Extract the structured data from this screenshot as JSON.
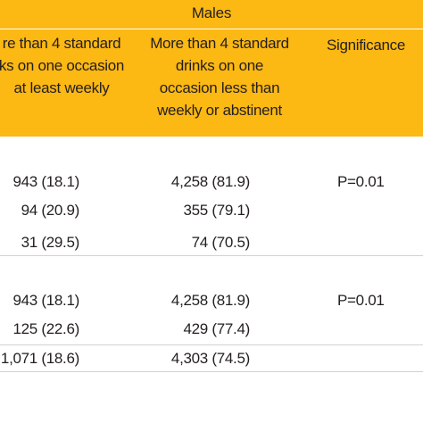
{
  "table": {
    "group_title": "Males",
    "columns": [
      [
        "re than 4 standard",
        "ks on one occasion",
        "at least weekly"
      ],
      [
        "More than 4 standard",
        "drinks on one",
        "occasion less than",
        "weekly or abstinent"
      ],
      [
        "Significance"
      ]
    ],
    "sections": [
      {
        "rows": [
          {
            "c1": "943 (18.1)",
            "c2": "4,258 (81.9)",
            "c3": "P=0.01"
          },
          {
            "c1": "94 (20.9)",
            "c2": "355 (79.1)",
            "c3": ""
          },
          {
            "c1": "31 (29.5)",
            "c2": "74 (70.5)",
            "c3": ""
          }
        ]
      },
      {
        "rows": [
          {
            "c1": "943 (18.1)",
            "c2": "4,258 (81.9)",
            "c3": "P=0.01"
          },
          {
            "c1": "125 (22.6)",
            "c2": "429 (77.4)",
            "c3": ""
          },
          {
            "c1": "1,071 (18.6)",
            "c2": "4,303 (74.5)",
            "c3": ""
          }
        ]
      }
    ]
  },
  "colors": {
    "header_band": "#fcb813",
    "text": "#231f20",
    "rule": "#d2d2d2"
  }
}
